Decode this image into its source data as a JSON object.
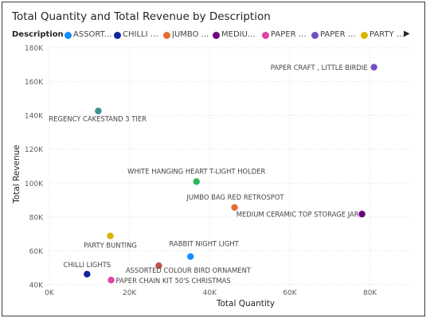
{
  "chart_data": {
    "type": "scatter",
    "title": "Total Quantity and Total Revenue by Description",
    "xlabel": "Total Quantity",
    "ylabel": "Total Revenue",
    "xlim": [
      0,
      90000
    ],
    "ylim": [
      40000,
      180000
    ],
    "xticks": [
      0,
      20000,
      40000,
      60000,
      80000
    ],
    "xtick_labels": [
      "0K",
      "20K",
      "40K",
      "60K",
      "80K"
    ],
    "yticks": [
      40000,
      60000,
      80000,
      100000,
      120000,
      140000,
      160000,
      180000
    ],
    "ytick_labels": [
      "40K",
      "60K",
      "80K",
      "100K",
      "120K",
      "140K",
      "160K",
      "180K"
    ],
    "grid": true,
    "legend": {
      "title": "Description",
      "placement": "top",
      "entries": [
        {
          "label": "ASSORT...",
          "color": "#118dff"
        },
        {
          "label": "CHILLI L...",
          "color": "#12239e"
        },
        {
          "label": "JUMBO ...",
          "color": "#e66c37"
        },
        {
          "label": "MEDIU...",
          "color": "#6b007b"
        },
        {
          "label": "PAPER C...",
          "color": "#e044a7"
        },
        {
          "label": "PAPER C...",
          "color": "#744ec2"
        },
        {
          "label": "PARTY B...",
          "color": "#d9b300"
        }
      ]
    },
    "points": [
      {
        "label": "PAPER CRAFT , LITTLE BIRDIE",
        "x": 80995,
        "y": 168470,
        "color": "#744ec2"
      },
      {
        "label": "REGENCY CAKESTAND 3 TIER",
        "x": 12200,
        "y": 142600,
        "color": "#3f8f8f"
      },
      {
        "label": "WHITE HANGING HEART T-LIGHT HOLDER",
        "x": 36700,
        "y": 100900,
        "color": "#2fb55b"
      },
      {
        "label": "JUMBO BAG RED RETROSPOT",
        "x": 46200,
        "y": 85600,
        "color": "#e66c37"
      },
      {
        "label": "MEDIUM CERAMIC TOP STORAGE JAR",
        "x": 78000,
        "y": 81700,
        "color": "#6b007b"
      },
      {
        "label": "PARTY BUNTING",
        "x": 15200,
        "y": 68800,
        "color": "#d9b300"
      },
      {
        "label": "RABBIT NIGHT LIGHT",
        "x": 35200,
        "y": 56600,
        "color": "#118dff"
      },
      {
        "label": "ASSORTED COLOUR BIRD ORNAMENT",
        "x": 27300,
        "y": 51200,
        "color": "#c24e4e"
      },
      {
        "label": "CHILLI LIGHTS",
        "x": 9400,
        "y": 46200,
        "color": "#12239e"
      },
      {
        "label": "PAPER CHAIN KIT 50'S CHRISTMAS",
        "x": 15400,
        "y": 42700,
        "color": "#e044a7"
      }
    ]
  },
  "legend_more_label": "▶"
}
